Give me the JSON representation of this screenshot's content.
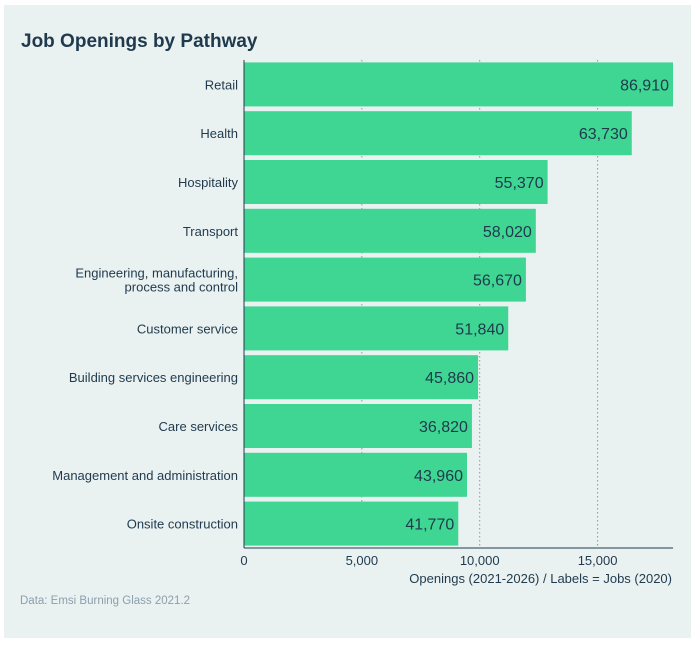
{
  "chart_data": {
    "type": "bar",
    "orientation": "horizontal",
    "title": "Job Openings by Pathway",
    "xlabel": "Openings (2021-2026) / Labels = Jobs (2020)",
    "source": "Data: Emsi Burning Glass 2021.2",
    "categories": [
      "Retail",
      "Health",
      "Hospitality",
      "Transport",
      "Engineering, manufacturing, process and control",
      "Customer service",
      "Building services engineering",
      "Care services",
      "Management and administration",
      "Onsite construction"
    ],
    "category_lines": [
      [
        "Retail"
      ],
      [
        "Health"
      ],
      [
        "Hospitality"
      ],
      [
        "Transport"
      ],
      [
        "Engineering, manufacturing,",
        "process and control"
      ],
      [
        "Customer service"
      ],
      [
        "Building services engineering"
      ],
      [
        "Care services"
      ],
      [
        "Management and administration"
      ],
      [
        "Onsite construction"
      ]
    ],
    "values": [
      18200,
      16450,
      12880,
      12380,
      11960,
      11210,
      9930,
      9670,
      9460,
      9090
    ],
    "labels": [
      "86,910",
      "63,730",
      "55,370",
      "58,020",
      "56,670",
      "51,840",
      "45,860",
      "36,820",
      "43,960",
      "41,770"
    ],
    "xlim": [
      0,
      18200
    ],
    "xticks": [
      0,
      5000,
      10000,
      15000
    ],
    "xtick_labels": [
      "0",
      "5,000",
      "10,000",
      "15,000"
    ],
    "grid": "vertical dotted",
    "colors": {
      "bar": "#3fd592",
      "text": "#1f3a4d",
      "grid": "#8a9a9a",
      "panel": "#eaf1f1",
      "source": "#8aa0ad"
    }
  }
}
